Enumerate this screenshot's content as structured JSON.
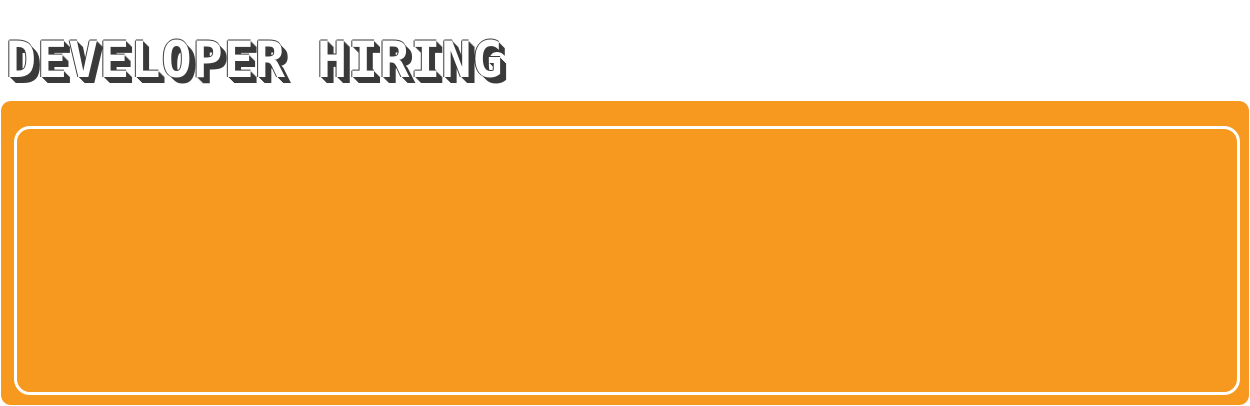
{
  "page": {
    "title": "DEVELOPER HIRING"
  },
  "colors": {
    "panel_background": "#f7991f",
    "panel_border": "#ffffff",
    "title_fill": "#ffffff",
    "title_shadow": "#3a3a3a"
  }
}
